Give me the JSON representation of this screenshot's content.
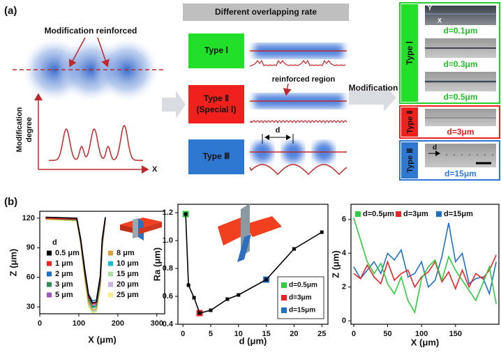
{
  "panel_a": {
    "label": "(a)",
    "modification_reinforced": "Modification reinforced",
    "modification_degree": [
      "Modification",
      "degree"
    ],
    "x_label": "X",
    "header": "Different overlapping rate",
    "types": [
      [
        "Type Ⅰ"
      ],
      [
        "Type Ⅱ",
        "(Special Ⅰ)"
      ],
      [
        "Type Ⅲ"
      ]
    ],
    "reinforced_region": "reinforced region",
    "d": "d",
    "modification": "Modification",
    "micrographs": [
      {
        "type": "Type Ⅰ",
        "images": [
          "d=0.1μm",
          "d=0.3μm",
          "d=0.5μm"
        ]
      },
      {
        "type": "Type Ⅱ",
        "images": [
          "d=3μm"
        ]
      },
      {
        "type": "Type Ⅲ",
        "images": [
          "d=15μm"
        ]
      }
    ],
    "axis_y": "Y",
    "axis_x": "X",
    "scale_d": "d"
  },
  "panel_b_label": "(b)",
  "chart_data": [
    {
      "type": "line",
      "x_label": "X (μm)",
      "y_label": "Z (μm)",
      "xlim": [
        0,
        320
      ],
      "xticks": [
        0,
        100,
        200,
        300
      ],
      "ylim": [
        23,
        127
      ],
      "yticks": [
        30,
        60,
        90,
        120
      ],
      "legend": "center left",
      "legend_title": "d",
      "x": [
        15,
        95,
        105,
        115,
        125,
        135,
        145,
        155,
        160,
        168
      ],
      "series": [
        {
          "name": "0.5 μm",
          "color": "#000000",
          "values": [
            121,
            120,
            98,
            68,
            42,
            34,
            35,
            60,
            98,
            121
          ]
        },
        {
          "name": "1 μm",
          "color": "#e8242a",
          "values": [
            120,
            119,
            97,
            66,
            40,
            33,
            34,
            58,
            96,
            120
          ]
        },
        {
          "name": "2 μm",
          "color": "#1f6fc5",
          "values": [
            121,
            120,
            99,
            70,
            43,
            36,
            37,
            62,
            100,
            121
          ]
        },
        {
          "name": "3 μm",
          "color": "#2e8b57",
          "values": [
            120,
            118,
            96,
            65,
            38,
            30,
            31,
            55,
            94,
            120
          ]
        },
        {
          "name": "5 μm",
          "color": "#9b59b6",
          "values": [
            120,
            119,
            98,
            67,
            40,
            31,
            33,
            57,
            95,
            120
          ]
        },
        {
          "name": "8 μm",
          "color": "#e0a030",
          "values": [
            119,
            118,
            95,
            62,
            34,
            27,
            28,
            52,
            92,
            119
          ]
        },
        {
          "name": "10 μm",
          "color": "#17becf",
          "values": [
            120,
            119,
            97,
            65,
            37,
            29,
            30,
            54,
            94,
            120
          ]
        },
        {
          "name": "15 μm",
          "color": "#a8e0a0",
          "values": [
            119,
            118,
            94,
            60,
            32,
            25,
            26,
            50,
            90,
            119
          ]
        },
        {
          "name": "20 μm",
          "color": "#c8b4e0",
          "values": [
            120,
            118,
            95,
            62,
            34,
            26,
            27,
            52,
            92,
            120
          ]
        },
        {
          "name": "25 μm",
          "color": "#f3f08a",
          "values": [
            119,
            117,
            93,
            58,
            30,
            24,
            25,
            48,
            88,
            119
          ]
        }
      ]
    },
    {
      "type": "line",
      "markers": true,
      "x_label": "d (μm)",
      "y_label": "Ra (μm)",
      "xlim": [
        -0.9,
        26.1
      ],
      "xticks": [
        0,
        5,
        10,
        15,
        20,
        25
      ],
      "ylim": [
        0.4,
        1.26
      ],
      "yticks": [
        0.4,
        0.6,
        0.8,
        {
          "value": 1,
          "label": "1.0"
        },
        1.2
      ],
      "legend": "lower right",
      "x": [
        0.5,
        1,
        2,
        3,
        5,
        8,
        10,
        15,
        20,
        25
      ],
      "series": [
        {
          "color": "#000000",
          "values": [
            1.19,
            0.68,
            0.59,
            0.48,
            0.5,
            0.58,
            0.61,
            0.72,
            0.94,
            1.06
          ]
        },
        {
          "name": "d=0.5μm",
          "color": "#2ecc40",
          "x": [
            0.5
          ],
          "values": [
            1.19
          ]
        },
        {
          "name": "d=3μm",
          "color": "#e8242a",
          "x": [
            3
          ],
          "values": [
            0.48
          ]
        },
        {
          "name": "d=15μm",
          "color": "#1f6fc5",
          "x": [
            15
          ],
          "values": [
            0.72
          ]
        }
      ]
    },
    {
      "type": "line",
      "x_label": "X (μm)",
      "y_label": "Z (μm)",
      "xlim": [
        -4,
        214
      ],
      "xticks": [
        0,
        50,
        100,
        150
      ],
      "ylim": [
        -0.2,
        6.9
      ],
      "yticks": [
        0,
        2,
        4,
        6
      ],
      "legend": "upper left",
      "x": [
        0,
        10,
        20,
        30,
        40,
        50,
        60,
        70,
        80,
        90,
        100,
        110,
        120,
        130,
        140,
        150,
        160,
        170,
        180,
        190,
        200,
        210
      ],
      "series": [
        {
          "name": "d=0.5μm",
          "color": "#2ecc40",
          "values": [
            6.1,
            4.8,
            3.5,
            2.8,
            3.4,
            2.2,
            1.6,
            2.6,
            1.2,
            0.5,
            2.5,
            3.2,
            3.6,
            2.4,
            3.8,
            3.0,
            2.4,
            1.8,
            1.2,
            2.2,
            3.2,
            1.0
          ]
        },
        {
          "name": "d=3μm",
          "color": "#e8242a",
          "values": [
            2.8,
            2.5,
            3.3,
            2.6,
            2.2,
            3.5,
            2.4,
            2.8,
            3.0,
            2.0,
            2.6,
            2.9,
            3.5,
            2.3,
            2.9,
            1.9,
            3.0,
            2.0,
            2.8,
            2.5,
            3.0,
            3.9
          ]
        },
        {
          "name": "d=15μm",
          "color": "#1f6fc5",
          "values": [
            3.2,
            2.5,
            3.0,
            3.5,
            2.8,
            4.0,
            3.6,
            4.2,
            2.6,
            2.8,
            3.5,
            2.0,
            2.4,
            3.8,
            5.8,
            3.5,
            4.0,
            2.2,
            2.5,
            2.6,
            1.6,
            3.5
          ]
        }
      ]
    }
  ]
}
